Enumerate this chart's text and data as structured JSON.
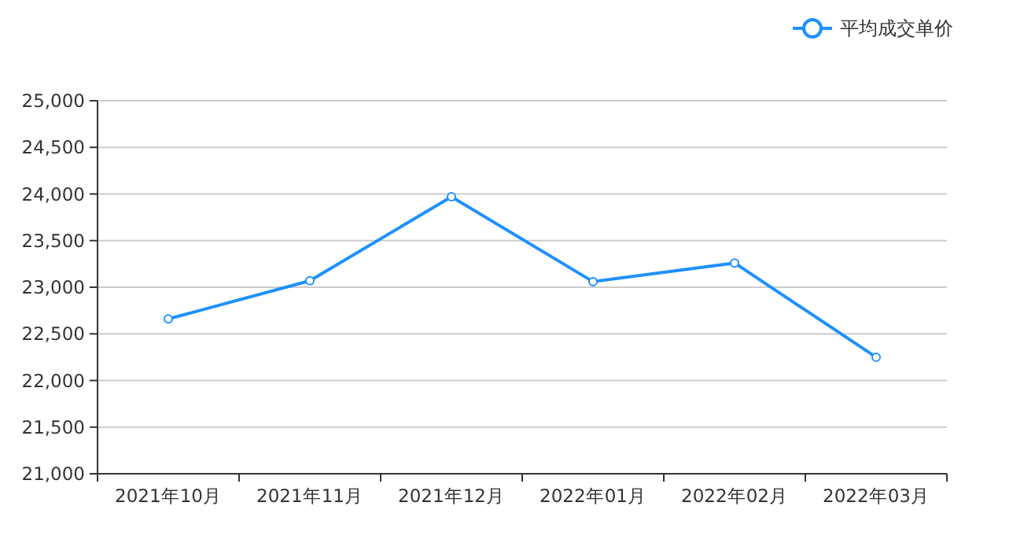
{
  "chart_data": {
    "type": "line",
    "categories": [
      "2021年10月",
      "2021年11月",
      "2021年12月",
      "2022年01月",
      "2022年02月",
      "2022年03月"
    ],
    "series": [
      {
        "name": "平均成交单价",
        "color": "#1e90ff",
        "values": [
          22660,
          23070,
          23970,
          23060,
          23260,
          22250
        ]
      }
    ],
    "ylim": [
      21000,
      25000
    ],
    "yticks": [
      {
        "value": 21000,
        "label": "21,000"
      },
      {
        "value": 21500,
        "label": "21,500"
      },
      {
        "value": 22000,
        "label": "22,000"
      },
      {
        "value": 22500,
        "label": "22,500"
      },
      {
        "value": 23000,
        "label": "23,000"
      },
      {
        "value": 23500,
        "label": "23,500"
      },
      {
        "value": 24000,
        "label": "24,000"
      },
      {
        "value": 24500,
        "label": "24,500"
      },
      {
        "value": 25000,
        "label": "25,000"
      }
    ],
    "grid": "y",
    "legend": "top right",
    "marker": "circle",
    "line_style": "solid"
  }
}
